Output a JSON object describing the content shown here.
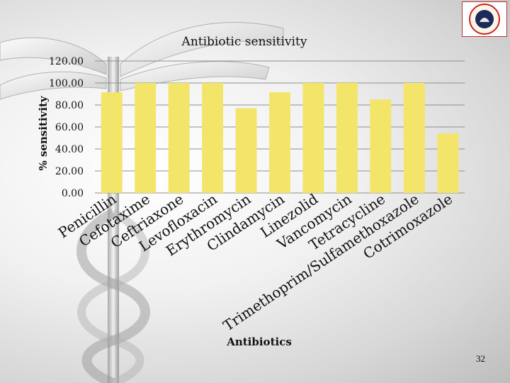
{
  "chart_data": {
    "type": "bar",
    "title": "Antibiotic sensitivity",
    "xlabel": "Antibiotics",
    "ylabel": "% sensitivity",
    "ylim": [
      0,
      120
    ],
    "ytick_values": [
      0,
      20,
      40,
      60,
      80,
      100,
      120
    ],
    "ytick_labels": [
      "0.00",
      "20.00",
      "40.00",
      "60.00",
      "80.00",
      "100.00",
      "120.00"
    ],
    "grid": true,
    "categories": [
      "Penicillin",
      "Cefotaxime",
      "Ceftriaxone",
      "Levofloxacin",
      "Erythromycin",
      "Clindamycin",
      "Linezolid",
      "Vancomycin",
      "Tetracycline",
      "Trimethoprim/Sulfamethoxazole",
      "Cotrimoxazole"
    ],
    "values": [
      91.5,
      100,
      100,
      100,
      77,
      91.5,
      100,
      100,
      85,
      100,
      54
    ],
    "bar_color": "#f2e56a"
  },
  "slide_number": "32"
}
